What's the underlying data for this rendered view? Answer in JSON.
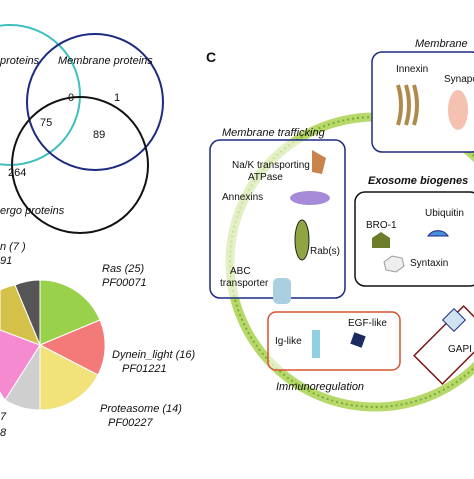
{
  "venn": {
    "left_label": "proteins",
    "top_label": "Membrane proteins",
    "bottom_label": "ergo proteins",
    "numbers": [
      "0",
      "1",
      "75",
      "89",
      "264"
    ]
  },
  "pie": {
    "labels": [
      "n (7 )",
      "91",
      "Ras (25)",
      "PF00071",
      "Dynein_light (16)",
      "PF01221",
      "Proteasome (14)",
      "PF00227",
      "7",
      "8"
    ]
  },
  "panel_c": {
    "letter": "C",
    "membrane": {
      "title": "Membrane",
      "items": [
        "Innexin",
        "Synapo"
      ]
    },
    "trafficking": {
      "title": "Membrane trafficking",
      "items": [
        "Na/K transporting",
        "ATPase",
        "Annexins",
        "Rab(s)",
        "ABC",
        "transporter"
      ]
    },
    "exosome": {
      "title": "Exosome biogenes",
      "items": [
        "BRO-1",
        "Ubiquitin",
        "Syntaxin"
      ]
    },
    "immuno": {
      "title": "Immunoregulation",
      "items": [
        "Ig-like",
        "EGF-like"
      ]
    },
    "gapi": "GAPI"
  }
}
